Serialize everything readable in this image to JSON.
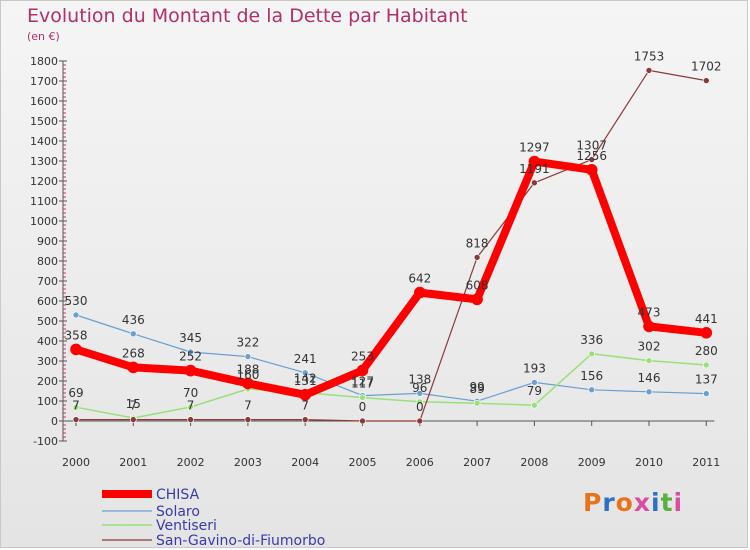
{
  "header": {
    "title": "Evolution du Montant de la Dette par Habitant",
    "subtitle": "(en €)"
  },
  "logo": {
    "letters": [
      "P",
      "r",
      "o",
      "x",
      "i",
      "t",
      "i"
    ]
  },
  "colors": {
    "title": "#b0306a",
    "chisa": "#ff0000",
    "solaro": "#6a9fd0",
    "ventiseri": "#99e07a",
    "san_gavino": "#8b3a3a",
    "logo": [
      "#e8731a",
      "#2f6fc4",
      "#e8731a",
      "#d94ea0",
      "#2f6fc4",
      "#58b03d",
      "#d94ea0"
    ]
  },
  "chart_data": {
    "type": "line",
    "title": "Evolution du Montant de la Dette par Habitant",
    "subtitle": "(en €)",
    "xlabel": "",
    "ylabel": "",
    "categories": [
      "2000",
      "2001",
      "2002",
      "2003",
      "2004",
      "2005",
      "2006",
      "2007",
      "2008",
      "2009",
      "2010",
      "2011"
    ],
    "yticks": [
      -100,
      0,
      100,
      200,
      300,
      400,
      500,
      600,
      700,
      800,
      900,
      1000,
      1100,
      1200,
      1300,
      1400,
      1500,
      1600,
      1700,
      1800
    ],
    "ylim": [
      -100,
      1800
    ],
    "grid": false,
    "legend_position": "bottom-left",
    "series": [
      {
        "name": "CHISA",
        "key": "chisa",
        "values": [
          358,
          268,
          252,
          188,
          131,
          253,
          642,
          608,
          1297,
          1256,
          473,
          441
        ]
      },
      {
        "name": "Solaro",
        "key": "solaro",
        "values": [
          530,
          436,
          345,
          322,
          241,
          127,
          138,
          99,
          193,
          156,
          146,
          137
        ]
      },
      {
        "name": "Ventiseri",
        "key": "ventiseri",
        "values": [
          69,
          15,
          70,
          160,
          142,
          117,
          96,
          89,
          79,
          336,
          302,
          280
        ]
      },
      {
        "name": "San-Gavino-di-Fiumorbo",
        "key": "san_gavino",
        "values": [
          7,
          7,
          7,
          7,
          7,
          0,
          0,
          818,
          1191,
          1307,
          1753,
          1702
        ]
      }
    ]
  }
}
